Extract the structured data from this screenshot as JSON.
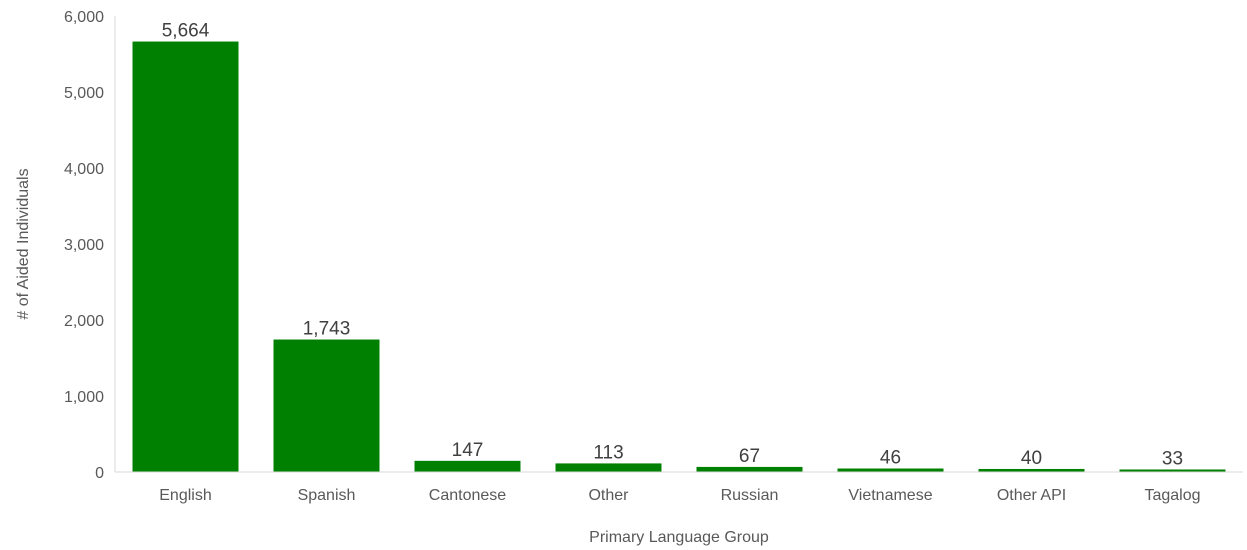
{
  "chart_data": {
    "type": "bar",
    "categories": [
      "English",
      "Spanish",
      "Cantonese",
      "Other",
      "Russian",
      "Vietnamese",
      "Other API",
      "Tagalog"
    ],
    "values": [
      5664,
      1743,
      147,
      113,
      67,
      46,
      40,
      33
    ],
    "data_labels": [
      "5,664",
      "1,743",
      "147",
      "113",
      "67",
      "46",
      "40",
      "33"
    ],
    "title": "",
    "xlabel": "Primary Language Group",
    "ylabel": "# of Aided Individuals",
    "ylim": [
      0,
      6000
    ],
    "yticks": [
      0,
      1000,
      2000,
      3000,
      4000,
      5000,
      6000
    ],
    "ytick_labels": [
      "0",
      "1,000",
      "2,000",
      "3,000",
      "4,000",
      "5,000",
      "6,000"
    ],
    "grid": false,
    "legend": "none",
    "bar_color": "#008000"
  }
}
